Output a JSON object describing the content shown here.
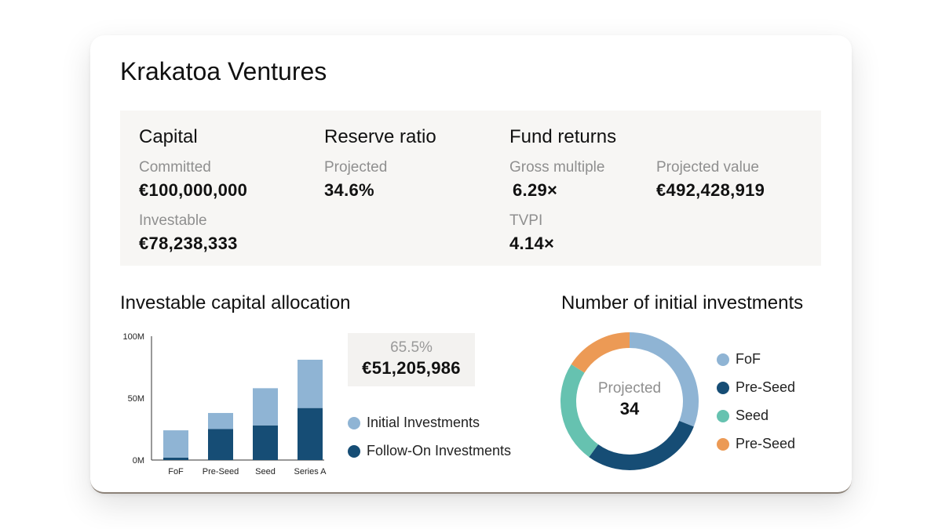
{
  "fund": {
    "title": "Krakatoa Ventures",
    "capital": {
      "heading": "Capital",
      "committed_label": "Committed",
      "committed_value": "€100,000,000",
      "investable_label": "Investable",
      "investable_value": "€78,238,333"
    },
    "reserve": {
      "heading": "Reserve ratio",
      "projected_label": "Projected",
      "projected_value": "34.6%"
    },
    "returns": {
      "heading": "Fund returns",
      "gross_label": "Gross multiple",
      "gross_value": "6.29×",
      "tvpi_label": "TVPI",
      "tvpi_value": "4.14×",
      "projected_value_label": "Projected value",
      "projected_value": "€492,428,919"
    }
  },
  "allocation": {
    "title": "Investable capital allocation",
    "callout_pct": "65.5%",
    "callout_amount": "€51,205,986",
    "legend": [
      {
        "label": "Initial Investments",
        "color": "#8fb4d4"
      },
      {
        "label": "Follow-On Investments",
        "color": "#164d75"
      }
    ]
  },
  "initial": {
    "title": "Number of initial investments",
    "center_label": "Projected",
    "center_value": "34",
    "legend": [
      {
        "label": "FoF",
        "color": "#8fb4d4"
      },
      {
        "label": "Pre-Seed",
        "color": "#164d75"
      },
      {
        "label": "Seed",
        "color": "#66c2b0"
      },
      {
        "label": "Pre-Seed",
        "color": "#ec9a55"
      }
    ]
  },
  "chart_data": [
    {
      "type": "bar",
      "stacked": true,
      "title": "Investable capital allocation",
      "categories": [
        "FoF",
        "Pre-Seed",
        "Seed",
        "Series A"
      ],
      "series": [
        {
          "name": "Follow-On Investments",
          "color": "#164d75",
          "values": [
            2,
            25,
            28,
            42
          ]
        },
        {
          "name": "Initial Investments",
          "color": "#8fb4d4",
          "values": [
            22,
            13,
            30,
            39
          ]
        }
      ],
      "yticks": [
        "0M",
        "50M",
        "100M"
      ],
      "ytick_values": [
        0,
        50,
        100
      ],
      "ylim": [
        0,
        100
      ],
      "grid": false
    },
    {
      "type": "pie",
      "donut": true,
      "title": "Number of initial investments",
      "categories": [
        "FoF",
        "Pre-Seed",
        "Seed",
        "Pre-Seed"
      ],
      "values": [
        31,
        29,
        24,
        16
      ],
      "colors": [
        "#8fb4d4",
        "#164d75",
        "#66c2b0",
        "#ec9a55"
      ],
      "center_label": "Projected",
      "center_value": 34,
      "legend_position": "right"
    }
  ]
}
